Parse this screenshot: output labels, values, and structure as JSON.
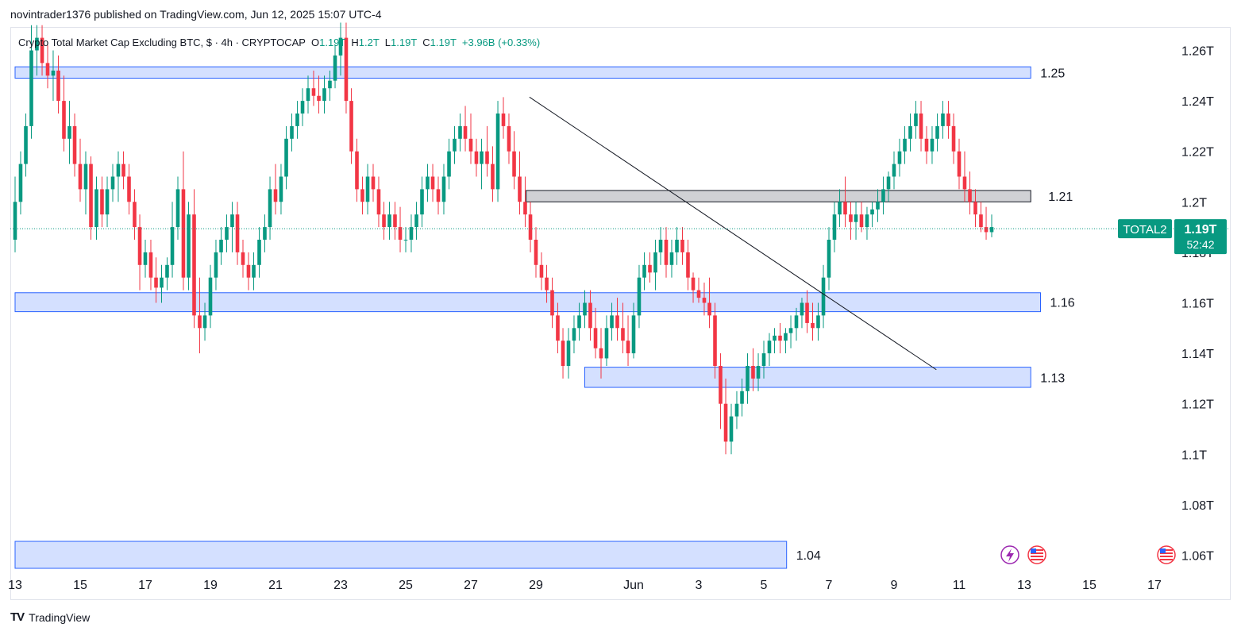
{
  "header": {
    "publisher_line": "novintrader1376 published on TradingView.com, Jun 12, 2025 15:07 UTC-4"
  },
  "legend": {
    "title": "Crypto Total Market Cap Excluding BTC, $ · 4h · CRYPTOCAP",
    "open_label": "O",
    "open": "1.19T",
    "high_label": "H",
    "high": "1.2T",
    "low_label": "L",
    "low": "1.19T",
    "close_label": "C",
    "close": "1.19T",
    "change": "+3.96B (+0.33%)"
  },
  "colors": {
    "up": "#089981",
    "down": "#f23645",
    "zone_blue": "#2962ff",
    "zone_grey": "#787b86",
    "price_tag": "#089981"
  },
  "footer": {
    "brand": "TradingView",
    "brand_mark": "TV"
  },
  "price_tag": {
    "symbol": "TOTAL2",
    "price": "1.19T",
    "countdown": "52:42"
  },
  "chart_data": {
    "type": "candlestick",
    "title": "Crypto Total Market Cap Excluding BTC, $ · 4h · CRYPTOCAP",
    "ylim": [
      1.05,
      1.271
    ],
    "y_ticks": [
      {
        "value": 1.26,
        "label": "1.26T"
      },
      {
        "value": 1.24,
        "label": "1.24T"
      },
      {
        "value": 1.22,
        "label": "1.22T"
      },
      {
        "value": 1.2,
        "label": "1.2T"
      },
      {
        "value": 1.18,
        "label": "1.18T"
      },
      {
        "value": 1.16,
        "label": "1.16T"
      },
      {
        "value": 1.14,
        "label": "1.14T"
      },
      {
        "value": 1.12,
        "label": "1.12T"
      },
      {
        "value": 1.1,
        "label": "1.1T"
      },
      {
        "value": 1.08,
        "label": "1.08T"
      },
      {
        "value": 1.06,
        "label": "1.06T"
      }
    ],
    "x_ticks": [
      {
        "day": 13,
        "label": "13"
      },
      {
        "day": 15,
        "label": "15"
      },
      {
        "day": 17,
        "label": "17"
      },
      {
        "day": 19,
        "label": "19"
      },
      {
        "day": 21,
        "label": "21"
      },
      {
        "day": 23,
        "label": "23"
      },
      {
        "day": 25,
        "label": "25"
      },
      {
        "day": 27,
        "label": "27"
      },
      {
        "day": 29,
        "label": "29"
      },
      {
        "day": 32,
        "label": "Jun"
      },
      {
        "day": 34,
        "label": "3"
      },
      {
        "day": 36,
        "label": "5"
      },
      {
        "day": 38,
        "label": "7"
      },
      {
        "day": 40,
        "label": "9"
      },
      {
        "day": 42,
        "label": "11"
      },
      {
        "day": 44,
        "label": "13"
      },
      {
        "day": 46,
        "label": "15"
      },
      {
        "day": 48,
        "label": "17"
      }
    ],
    "last_price": 1.19,
    "zones": [
      {
        "label": "1.25",
        "day_start": 13,
        "day_end": 44.2,
        "top": 1.2535,
        "bottom": 1.249,
        "style": "blue"
      },
      {
        "label": "1.21",
        "day_start": 28.7,
        "day_end": 44.2,
        "top": 1.2045,
        "bottom": 1.2,
        "style": "grey"
      },
      {
        "label": "1.16",
        "day_start": 13,
        "day_end": 44.5,
        "top": 1.164,
        "bottom": 1.1565,
        "style": "blue"
      },
      {
        "label": "1.13",
        "day_start": 30.5,
        "day_end": 44.2,
        "top": 1.1345,
        "bottom": 1.1265,
        "style": "blue"
      },
      {
        "label": "1.04",
        "day_start": 13,
        "day_end": 36.7,
        "top": 1.0655,
        "bottom": 1.05,
        "style": "blue"
      }
    ],
    "trendline": {
      "from": {
        "day": 28.8,
        "value": 1.2415
      },
      "to": {
        "day": 41.3,
        "value": 1.1335
      }
    },
    "candles": [
      [
        13.0,
        1.185,
        1.21,
        1.18,
        1.2
      ],
      [
        13.17,
        1.2,
        1.22,
        1.195,
        1.215
      ],
      [
        13.33,
        1.215,
        1.235,
        1.21,
        1.23
      ],
      [
        13.5,
        1.23,
        1.27,
        1.225,
        1.26
      ],
      [
        13.67,
        1.26,
        1.27,
        1.25,
        1.265
      ],
      [
        13.83,
        1.265,
        1.27,
        1.25,
        1.255
      ],
      [
        14.0,
        1.255,
        1.262,
        1.245,
        1.25
      ],
      [
        14.17,
        1.25,
        1.26,
        1.24,
        1.252
      ],
      [
        14.33,
        1.252,
        1.258,
        1.235,
        1.24
      ],
      [
        14.5,
        1.24,
        1.25,
        1.22,
        1.225
      ],
      [
        14.67,
        1.225,
        1.24,
        1.215,
        1.23
      ],
      [
        14.83,
        1.23,
        1.235,
        1.21,
        1.215
      ],
      [
        15.0,
        1.215,
        1.225,
        1.2,
        1.205
      ],
      [
        15.17,
        1.205,
        1.22,
        1.195,
        1.215
      ],
      [
        15.33,
        1.215,
        1.218,
        1.185,
        1.19
      ],
      [
        15.5,
        1.19,
        1.21,
        1.185,
        1.205
      ],
      [
        15.67,
        1.205,
        1.21,
        1.19,
        1.195
      ],
      [
        15.83,
        1.195,
        1.21,
        1.19,
        1.205
      ],
      [
        16.0,
        1.205,
        1.215,
        1.2,
        1.21
      ],
      [
        16.17,
        1.21,
        1.22,
        1.2,
        1.215
      ],
      [
        16.33,
        1.215,
        1.22,
        1.205,
        1.21
      ],
      [
        16.5,
        1.21,
        1.215,
        1.195,
        1.2
      ],
      [
        16.67,
        1.2,
        1.205,
        1.185,
        1.19
      ],
      [
        16.83,
        1.19,
        1.195,
        1.165,
        1.175
      ],
      [
        17.0,
        1.175,
        1.185,
        1.17,
        1.18
      ],
      [
        17.17,
        1.18,
        1.185,
        1.165,
        1.17
      ],
      [
        17.33,
        1.17,
        1.178,
        1.16,
        1.166
      ],
      [
        17.5,
        1.166,
        1.175,
        1.16,
        1.17
      ],
      [
        17.67,
        1.17,
        1.178,
        1.165,
        1.175
      ],
      [
        17.83,
        1.175,
        1.2,
        1.17,
        1.19
      ],
      [
        18.0,
        1.19,
        1.21,
        1.185,
        1.205
      ],
      [
        18.17,
        1.205,
        1.22,
        1.165,
        1.17
      ],
      [
        18.33,
        1.17,
        1.2,
        1.165,
        1.195
      ],
      [
        18.5,
        1.195,
        1.205,
        1.15,
        1.155
      ],
      [
        18.67,
        1.155,
        1.17,
        1.14,
        1.15
      ],
      [
        18.83,
        1.15,
        1.16,
        1.145,
        1.155
      ],
      [
        19.0,
        1.155,
        1.175,
        1.15,
        1.17
      ],
      [
        19.17,
        1.17,
        1.185,
        1.165,
        1.18
      ],
      [
        19.33,
        1.18,
        1.19,
        1.175,
        1.185
      ],
      [
        19.5,
        1.185,
        1.195,
        1.18,
        1.19
      ],
      [
        19.67,
        1.19,
        1.2,
        1.18,
        1.195
      ],
      [
        19.83,
        1.195,
        1.2,
        1.175,
        1.18
      ],
      [
        20.0,
        1.18,
        1.185,
        1.17,
        1.175
      ],
      [
        20.17,
        1.175,
        1.18,
        1.165,
        1.17
      ],
      [
        20.33,
        1.17,
        1.18,
        1.165,
        1.175
      ],
      [
        20.5,
        1.175,
        1.19,
        1.17,
        1.185
      ],
      [
        20.67,
        1.185,
        1.195,
        1.18,
        1.19
      ],
      [
        20.83,
        1.19,
        1.21,
        1.185,
        1.205
      ],
      [
        21.0,
        1.205,
        1.215,
        1.195,
        1.2
      ],
      [
        21.17,
        1.2,
        1.215,
        1.195,
        1.21
      ],
      [
        21.33,
        1.21,
        1.23,
        1.205,
        1.225
      ],
      [
        21.5,
        1.225,
        1.235,
        1.22,
        1.23
      ],
      [
        21.67,
        1.23,
        1.24,
        1.225,
        1.235
      ],
      [
        21.83,
        1.235,
        1.245,
        1.23,
        1.24
      ],
      [
        22.0,
        1.24,
        1.25,
        1.235,
        1.245
      ],
      [
        22.17,
        1.245,
        1.252,
        1.238,
        1.242
      ],
      [
        22.33,
        1.242,
        1.25,
        1.235,
        1.24
      ],
      [
        22.5,
        1.24,
        1.25,
        1.235,
        1.245
      ],
      [
        22.67,
        1.245,
        1.252,
        1.24,
        1.248
      ],
      [
        22.83,
        1.248,
        1.262,
        1.245,
        1.258
      ],
      [
        23.0,
        1.258,
        1.271,
        1.25,
        1.265
      ],
      [
        23.17,
        1.265,
        1.271,
        1.235,
        1.24
      ],
      [
        23.33,
        1.24,
        1.245,
        1.215,
        1.22
      ],
      [
        23.5,
        1.22,
        1.225,
        1.2,
        1.205
      ],
      [
        23.67,
        1.205,
        1.21,
        1.195,
        1.2
      ],
      [
        23.83,
        1.2,
        1.215,
        1.195,
        1.21
      ],
      [
        24.0,
        1.21,
        1.215,
        1.2,
        1.205
      ],
      [
        24.17,
        1.205,
        1.21,
        1.19,
        1.195
      ],
      [
        24.33,
        1.195,
        1.2,
        1.185,
        1.19
      ],
      [
        24.5,
        1.19,
        1.2,
        1.185,
        1.195
      ],
      [
        24.67,
        1.195,
        1.2,
        1.185,
        1.19
      ],
      [
        24.83,
        1.19,
        1.198,
        1.18,
        1.185
      ],
      [
        25.0,
        1.185,
        1.19,
        1.18,
        1.185
      ],
      [
        25.17,
        1.185,
        1.195,
        1.18,
        1.19
      ],
      [
        25.33,
        1.19,
        1.2,
        1.185,
        1.195
      ],
      [
        25.5,
        1.195,
        1.21,
        1.19,
        1.205
      ],
      [
        25.67,
        1.205,
        1.215,
        1.2,
        1.21
      ],
      [
        25.83,
        1.21,
        1.215,
        1.2,
        1.205
      ],
      [
        26.0,
        1.205,
        1.21,
        1.195,
        1.2
      ],
      [
        26.17,
        1.2,
        1.215,
        1.195,
        1.21
      ],
      [
        26.33,
        1.21,
        1.225,
        1.205,
        1.22
      ],
      [
        26.5,
        1.22,
        1.23,
        1.215,
        1.225
      ],
      [
        26.67,
        1.225,
        1.235,
        1.22,
        1.23
      ],
      [
        26.83,
        1.23,
        1.238,
        1.22,
        1.225
      ],
      [
        27.0,
        1.225,
        1.235,
        1.215,
        1.22
      ],
      [
        27.17,
        1.22,
        1.225,
        1.21,
        1.215
      ],
      [
        27.33,
        1.215,
        1.225,
        1.205,
        1.22
      ],
      [
        27.5,
        1.22,
        1.23,
        1.21,
        1.215
      ],
      [
        27.67,
        1.215,
        1.222,
        1.2,
        1.205
      ],
      [
        27.83,
        1.205,
        1.24,
        1.2,
        1.235
      ],
      [
        28.0,
        1.235,
        1.2415,
        1.225,
        1.23
      ],
      [
        28.17,
        1.23,
        1.235,
        1.215,
        1.22
      ],
      [
        28.33,
        1.22,
        1.228,
        1.205,
        1.21
      ],
      [
        28.5,
        1.21,
        1.22,
        1.195,
        1.2
      ],
      [
        28.67,
        1.2,
        1.21,
        1.19,
        1.195
      ],
      [
        28.83,
        1.195,
        1.2,
        1.18,
        1.185
      ],
      [
        29.0,
        1.185,
        1.19,
        1.17,
        1.175
      ],
      [
        29.17,
        1.175,
        1.18,
        1.165,
        1.17
      ],
      [
        29.33,
        1.17,
        1.175,
        1.16,
        1.165
      ],
      [
        29.5,
        1.165,
        1.17,
        1.15,
        1.155
      ],
      [
        29.67,
        1.155,
        1.16,
        1.14,
        1.145
      ],
      [
        29.83,
        1.145,
        1.15,
        1.13,
        1.135
      ],
      [
        30.0,
        1.135,
        1.15,
        1.13,
        1.145
      ],
      [
        30.17,
        1.145,
        1.155,
        1.14,
        1.15
      ],
      [
        30.33,
        1.15,
        1.16,
        1.145,
        1.155
      ],
      [
        30.5,
        1.155,
        1.165,
        1.15,
        1.16
      ],
      [
        30.67,
        1.16,
        1.165,
        1.145,
        1.15
      ],
      [
        30.83,
        1.15,
        1.158,
        1.138,
        1.142
      ],
      [
        31.0,
        1.142,
        1.15,
        1.13,
        1.138
      ],
      [
        31.17,
        1.138,
        1.155,
        1.135,
        1.15
      ],
      [
        31.33,
        1.15,
        1.16,
        1.145,
        1.155
      ],
      [
        31.5,
        1.155,
        1.162,
        1.145,
        1.15
      ],
      [
        31.67,
        1.15,
        1.16,
        1.14,
        1.145
      ],
      [
        31.83,
        1.145,
        1.155,
        1.135,
        1.14
      ],
      [
        32.0,
        1.14,
        1.16,
        1.138,
        1.155
      ],
      [
        32.17,
        1.155,
        1.175,
        1.15,
        1.17
      ],
      [
        32.33,
        1.17,
        1.18,
        1.165,
        1.175
      ],
      [
        32.5,
        1.175,
        1.18,
        1.168,
        1.172
      ],
      [
        32.67,
        1.172,
        1.185,
        1.165,
        1.18
      ],
      [
        32.83,
        1.18,
        1.19,
        1.175,
        1.185
      ],
      [
        33.0,
        1.185,
        1.19,
        1.17,
        1.175
      ],
      [
        33.17,
        1.175,
        1.185,
        1.17,
        1.18
      ],
      [
        33.33,
        1.18,
        1.19,
        1.175,
        1.185
      ],
      [
        33.5,
        1.185,
        1.19,
        1.175,
        1.18
      ],
      [
        33.67,
        1.18,
        1.185,
        1.165,
        1.17
      ],
      [
        33.83,
        1.17,
        1.172,
        1.16,
        1.165
      ],
      [
        34.0,
        1.165,
        1.17,
        1.16,
        1.162
      ],
      [
        34.17,
        1.162,
        1.168,
        1.155,
        1.16
      ],
      [
        34.33,
        1.16,
        1.17,
        1.15,
        1.155
      ],
      [
        34.5,
        1.155,
        1.16,
        1.13,
        1.135
      ],
      [
        34.67,
        1.135,
        1.14,
        1.11,
        1.12
      ],
      [
        34.83,
        1.12,
        1.13,
        1.1,
        1.105
      ],
      [
        35.0,
        1.105,
        1.12,
        1.1,
        1.115
      ],
      [
        35.17,
        1.115,
        1.125,
        1.11,
        1.12
      ],
      [
        35.33,
        1.12,
        1.13,
        1.115,
        1.125
      ],
      [
        35.5,
        1.125,
        1.14,
        1.12,
        1.135
      ],
      [
        35.67,
        1.135,
        1.142,
        1.125,
        1.13
      ],
      [
        35.83,
        1.13,
        1.14,
        1.125,
        1.135
      ],
      [
        36.0,
        1.135,
        1.145,
        1.13,
        1.14
      ],
      [
        36.17,
        1.14,
        1.148,
        1.135,
        1.145
      ],
      [
        36.33,
        1.145,
        1.15,
        1.14,
        1.147
      ],
      [
        36.5,
        1.147,
        1.152,
        1.14,
        1.145
      ],
      [
        36.67,
        1.145,
        1.15,
        1.14,
        1.148
      ],
      [
        36.83,
        1.148,
        1.155,
        1.142,
        1.15
      ],
      [
        37.0,
        1.15,
        1.158,
        1.145,
        1.155
      ],
      [
        37.17,
        1.155,
        1.162,
        1.15,
        1.16
      ],
      [
        37.33,
        1.16,
        1.165,
        1.148,
        1.152
      ],
      [
        37.5,
        1.152,
        1.16,
        1.145,
        1.15
      ],
      [
        37.67,
        1.15,
        1.16,
        1.145,
        1.155
      ],
      [
        37.83,
        1.155,
        1.175,
        1.15,
        1.17
      ],
      [
        38.0,
        1.17,
        1.19,
        1.165,
        1.185
      ],
      [
        38.17,
        1.185,
        1.2,
        1.18,
        1.195
      ],
      [
        38.33,
        1.195,
        1.205,
        1.19,
        1.2
      ],
      [
        38.5,
        1.2,
        1.21,
        1.19,
        1.195
      ],
      [
        38.67,
        1.195,
        1.2,
        1.185,
        1.192
      ],
      [
        38.83,
        1.192,
        1.2,
        1.185,
        1.195
      ],
      [
        39.0,
        1.195,
        1.2,
        1.188,
        1.19
      ],
      [
        39.17,
        1.19,
        1.198,
        1.185,
        1.195
      ],
      [
        39.33,
        1.195,
        1.2,
        1.19,
        1.197
      ],
      [
        39.5,
        1.197,
        1.205,
        1.192,
        1.2
      ],
      [
        39.67,
        1.2,
        1.21,
        1.195,
        1.205
      ],
      [
        39.83,
        1.205,
        1.212,
        1.2,
        1.21
      ],
      [
        40.0,
        1.21,
        1.22,
        1.205,
        1.215
      ],
      [
        40.17,
        1.215,
        1.225,
        1.21,
        1.22
      ],
      [
        40.33,
        1.22,
        1.23,
        1.215,
        1.225
      ],
      [
        40.5,
        1.225,
        1.235,
        1.22,
        1.23
      ],
      [
        40.67,
        1.23,
        1.24,
        1.225,
        1.235
      ],
      [
        40.83,
        1.235,
        1.24,
        1.22,
        1.225
      ],
      [
        41.0,
        1.225,
        1.23,
        1.215,
        1.22
      ],
      [
        41.17,
        1.22,
        1.23,
        1.215,
        1.225
      ],
      [
        41.33,
        1.225,
        1.235,
        1.22,
        1.23
      ],
      [
        41.5,
        1.23,
        1.24,
        1.225,
        1.235
      ],
      [
        41.67,
        1.235,
        1.24,
        1.225,
        1.23
      ],
      [
        41.83,
        1.23,
        1.235,
        1.215,
        1.22
      ],
      [
        42.0,
        1.22,
        1.225,
        1.205,
        1.21
      ],
      [
        42.17,
        1.21,
        1.22,
        1.2,
        1.205
      ],
      [
        42.33,
        1.205,
        1.212,
        1.195,
        1.2
      ],
      [
        42.5,
        1.2,
        1.205,
        1.19,
        1.195
      ],
      [
        42.67,
        1.195,
        1.2,
        1.188,
        1.19
      ],
      [
        42.83,
        1.19,
        1.198,
        1.185,
        1.188
      ],
      [
        43.0,
        1.188,
        1.195,
        1.186,
        1.19
      ]
    ]
  }
}
